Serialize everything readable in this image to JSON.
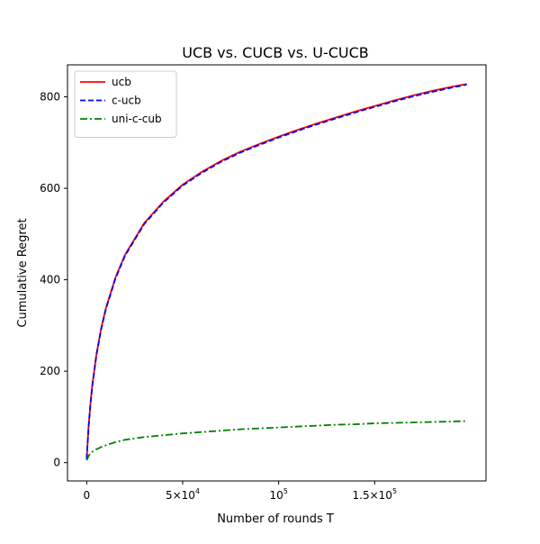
{
  "chart_data": {
    "type": "line",
    "title": "UCB vs. CUCB vs. U-CUCB",
    "xlabel": "Number of rounds T",
    "ylabel": "Cumulative Regret",
    "xlim": [
      -10000,
      208000
    ],
    "ylim": [
      -40,
      870
    ],
    "xticks": [
      {
        "value": 0,
        "label": "0"
      },
      {
        "value": 50000,
        "label": "5×10",
        "sup": "4"
      },
      {
        "value": 100000,
        "label": "10",
        "sup": "5"
      },
      {
        "value": 150000,
        "label": "1.5×10",
        "sup": "5"
      }
    ],
    "yticks": [
      {
        "value": 0,
        "label": "0"
      },
      {
        "value": 200,
        "label": "200"
      },
      {
        "value": 400,
        "label": "400"
      },
      {
        "value": 600,
        "label": "600"
      },
      {
        "value": 800,
        "label": "800"
      }
    ],
    "grid": false,
    "legend_position": "top-left",
    "x": [
      0,
      1000,
      2000,
      3000,
      5000,
      7500,
      10000,
      15000,
      20000,
      30000,
      40000,
      50000,
      60000,
      70000,
      80000,
      90000,
      100000,
      110000,
      120000,
      130000,
      140000,
      150000,
      160000,
      170000,
      180000,
      190000,
      198000
    ],
    "series": [
      {
        "name": "ucb",
        "color": "#ff0000",
        "dash": "solid",
        "values": [
          8,
          80,
          132,
          172,
          235,
          293,
          338,
          405,
          455,
          524,
          571,
          608,
          636,
          660,
          680,
          697,
          713,
          728,
          742,
          755,
          768,
          780,
          792,
          803,
          813,
          822,
          828
        ]
      },
      {
        "name": "c-ucb",
        "color": "#0000ff",
        "dash": "dashed",
        "values": [
          8,
          78,
          130,
          170,
          233,
          291,
          336,
          403,
          453,
          522,
          569,
          606,
          634,
          658,
          678,
          695,
          711,
          726,
          740,
          753,
          766,
          778,
          790,
          801,
          811,
          820,
          827
        ]
      },
      {
        "name": "uni-c-cub",
        "color": "#008000",
        "dash": "dashdot",
        "values": [
          5,
          15,
          20,
          24,
          29,
          34,
          38,
          45,
          50,
          56,
          60,
          64,
          67,
          70,
          73,
          75,
          77,
          79,
          81,
          83,
          84,
          86,
          87,
          88,
          89,
          90,
          91
        ]
      }
    ]
  }
}
